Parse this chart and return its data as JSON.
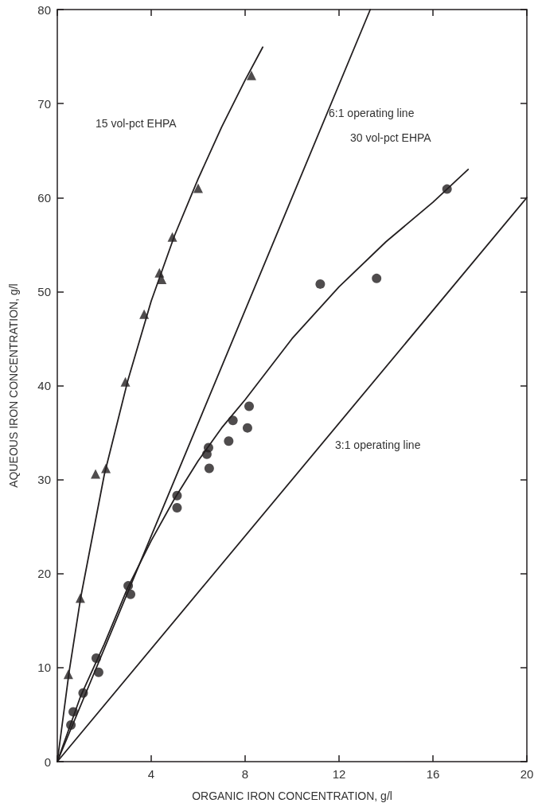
{
  "chart_data": {
    "type": "scatter",
    "xlabel": "ORGANIC IRON CONCENTRATION, g/l",
    "ylabel": "AQUEOUS IRON CONCENTRATION, g/l",
    "xlim": [
      0,
      20
    ],
    "xticks": [
      {
        "value": 0,
        "label": null
      },
      4,
      8,
      12,
      16,
      20
    ],
    "ylim": [
      0,
      80
    ],
    "yticks": [
      0,
      10,
      20,
      30,
      40,
      50,
      60,
      70,
      80
    ],
    "grid": false,
    "series": [
      {
        "type": "line",
        "marker": "none",
        "color": "#231f20",
        "x": [
          0,
          13.33
        ],
        "values": [
          0,
          80
        ]
      },
      {
        "type": "line",
        "marker": "none",
        "color": "#231f20",
        "x": [
          0,
          20
        ],
        "values": [
          0,
          60
        ]
      },
      {
        "type": "line",
        "marker": "none",
        "color": "#231f20",
        "x": [
          0,
          0.5,
          1,
          2,
          3,
          4,
          5,
          6,
          7,
          8,
          8.75
        ],
        "values": [
          0,
          9.5,
          17.5,
          30.5,
          40.5,
          49,
          56,
          62,
          67.5,
          72.5,
          76
        ]
      },
      {
        "type": "line",
        "marker": "none",
        "color": "#231f20",
        "x": [
          0,
          1,
          2,
          3,
          4,
          5,
          6,
          7,
          8,
          10,
          12,
          14,
          16,
          17.5
        ],
        "values": [
          0,
          7,
          12.5,
          18.5,
          23.5,
          28,
          32,
          35.5,
          38.5,
          45,
          50.5,
          55.3,
          59.5,
          63
        ]
      },
      {
        "type": "scatter",
        "marker": "triangle",
        "color": "#231f20",
        "x": [
          0.47,
          0.98,
          1.63,
          2.07,
          2.9,
          3.7,
          4.35,
          4.45,
          4.9,
          6.0,
          8.27
        ],
        "values": [
          9.3,
          17.4,
          30.6,
          31.2,
          40.4,
          47.6,
          52,
          51.3,
          55.8,
          61,
          73
        ]
      },
      {
        "type": "scatter",
        "marker": "circle",
        "color": "#231f20",
        "x": [
          0.58,
          0.68,
          1.1,
          1.66,
          1.76,
          3.02,
          3.12,
          5.1,
          5.1,
          6.37,
          6.44,
          6.47,
          7.3,
          7.48,
          8.1,
          8.17,
          11.2,
          13.6,
          16.6
        ],
        "values": [
          3.9,
          5.3,
          7.3,
          11,
          9.5,
          18.7,
          17.8,
          28.3,
          27,
          32.7,
          33.4,
          31.2,
          34.1,
          36.3,
          35.5,
          37.8,
          50.8,
          51.4,
          60.9
        ]
      }
    ],
    "annotations": [
      "15 vol-pct EHPA",
      "6:1 operating line",
      "30 vol-pct EHPA",
      "3:1 operating line"
    ]
  }
}
